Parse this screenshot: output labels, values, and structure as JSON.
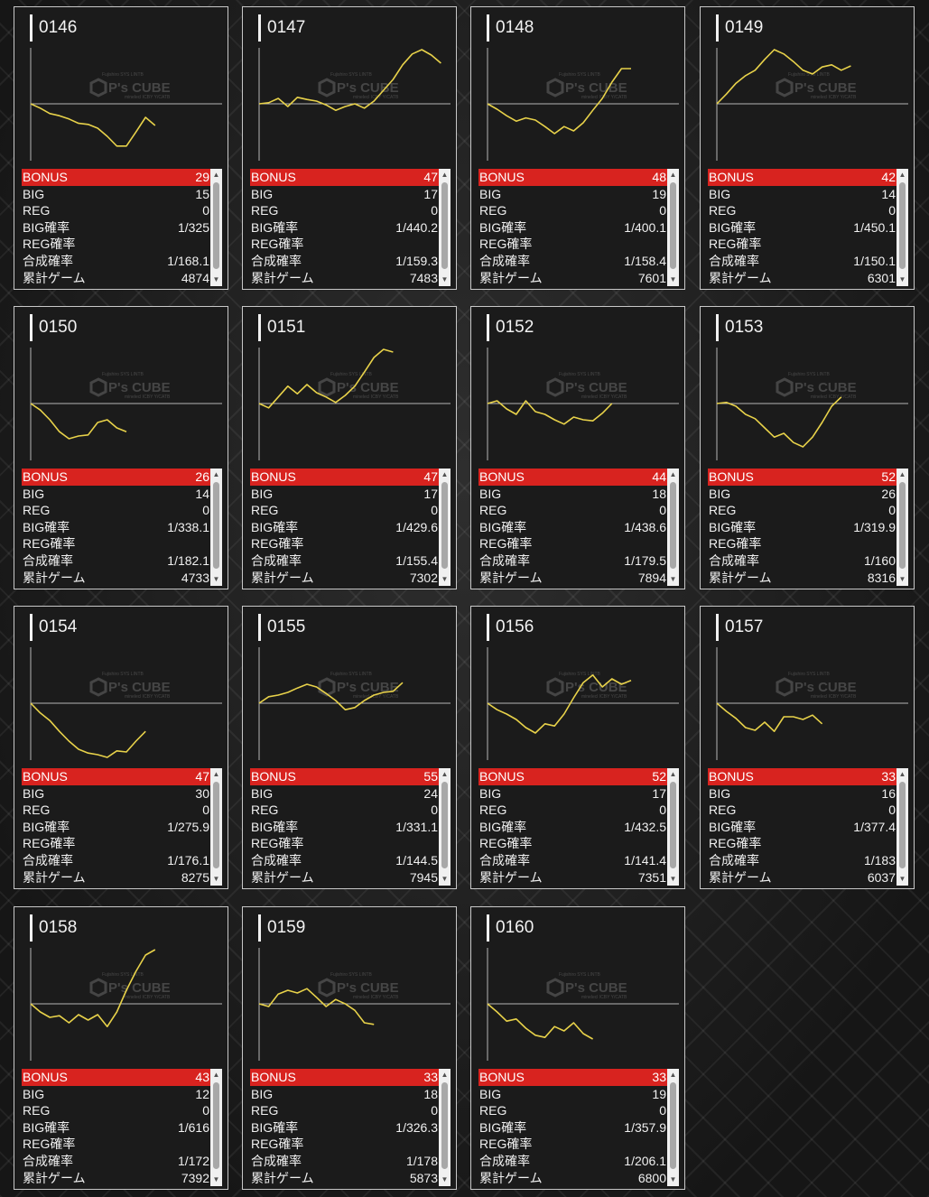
{
  "watermark": {
    "sub_text_top": "Fujishiro SYS LINTB",
    "brand": "P's CUBE",
    "sub_text_bottom": "minelecl ICBY Y/CATB"
  },
  "colors": {
    "line": "#e8d24a",
    "bonus_bg": "#d8231f",
    "axis": "#b4b4b4"
  },
  "labels": {
    "bonus": "BONUS",
    "big": "BIG",
    "reg": "REG",
    "big_prob": "BIG確率",
    "reg_prob": "REG確率",
    "combined_prob": "合成確率",
    "total_games": "累計ゲーム"
  },
  "machines": [
    {
      "id": "0146",
      "bonus": "29",
      "big": "15",
      "reg": "0",
      "big_prob": "1/325",
      "reg_prob": "",
      "combined_prob": "1/168.1",
      "total_games": "4874",
      "trend": [
        0,
        -0.08,
        -0.18,
        -0.22,
        -0.28,
        -0.36,
        -0.38,
        -0.45,
        -0.6,
        -0.78,
        -0.78,
        -0.52,
        -0.25,
        -0.4
      ]
    },
    {
      "id": "0147",
      "bonus": "47",
      "big": "17",
      "reg": "0",
      "big_prob": "1/440.2",
      "reg_prob": "",
      "combined_prob": "1/159.3",
      "total_games": "7483",
      "trend": [
        0,
        0.02,
        0.1,
        -0.05,
        0.12,
        0.08,
        0.05,
        -0.02,
        -0.12,
        -0.05,
        0.0,
        -0.08,
        0.05,
        0.25,
        0.45,
        0.72,
        0.92,
        1.0,
        0.9,
        0.75
      ]
    },
    {
      "id": "0148",
      "bonus": "48",
      "big": "19",
      "reg": "0",
      "big_prob": "1/400.1",
      "reg_prob": "",
      "combined_prob": "1/158.4",
      "total_games": "7601",
      "trend": [
        0,
        -0.1,
        -0.22,
        -0.32,
        -0.26,
        -0.3,
        -0.42,
        -0.55,
        -0.42,
        -0.5,
        -0.35,
        -0.12,
        0.1,
        0.4,
        0.65,
        0.65
      ]
    },
    {
      "id": "0149",
      "bonus": "42",
      "big": "14",
      "reg": "0",
      "big_prob": "1/450.1",
      "reg_prob": "",
      "combined_prob": "1/150.1",
      "total_games": "6301",
      "trend": [
        0,
        0.18,
        0.38,
        0.52,
        0.62,
        0.82,
        1.0,
        0.92,
        0.78,
        0.62,
        0.55,
        0.68,
        0.72,
        0.62,
        0.7
      ]
    },
    {
      "id": "0150",
      "bonus": "26",
      "big": "14",
      "reg": "0",
      "big_prob": "1/338.1",
      "reg_prob": "",
      "combined_prob": "1/182.1",
      "total_games": "4733",
      "trend": [
        0,
        -0.12,
        -0.3,
        -0.52,
        -0.65,
        -0.6,
        -0.58,
        -0.35,
        -0.3,
        -0.45,
        -0.52
      ]
    },
    {
      "id": "0151",
      "bonus": "47",
      "big": "17",
      "reg": "0",
      "big_prob": "1/429.6",
      "reg_prob": "",
      "combined_prob": "1/155.4",
      "total_games": "7302",
      "trend": [
        0,
        -0.08,
        0.12,
        0.32,
        0.18,
        0.35,
        0.2,
        0.12,
        0.02,
        0.15,
        0.32,
        0.58,
        0.85,
        1.0,
        0.95
      ]
    },
    {
      "id": "0152",
      "bonus": "44",
      "big": "18",
      "reg": "0",
      "big_prob": "1/438.6",
      "reg_prob": "",
      "combined_prob": "1/179.5",
      "total_games": "7894",
      "trend": [
        0,
        0.05,
        -0.1,
        -0.2,
        0.05,
        -0.15,
        -0.2,
        -0.3,
        -0.38,
        -0.25,
        -0.3,
        -0.32,
        -0.18,
        0.0
      ]
    },
    {
      "id": "0153",
      "bonus": "52",
      "big": "26",
      "reg": "0",
      "big_prob": "1/319.9",
      "reg_prob": "",
      "combined_prob": "1/160",
      "total_games": "8316",
      "trend": [
        0,
        0.02,
        -0.05,
        -0.2,
        -0.28,
        -0.45,
        -0.62,
        -0.55,
        -0.72,
        -0.8,
        -0.62,
        -0.35,
        -0.05,
        0.12
      ]
    },
    {
      "id": "0154",
      "bonus": "47",
      "big": "30",
      "reg": "0",
      "big_prob": "1/275.9",
      "reg_prob": "",
      "combined_prob": "1/176.1",
      "total_games": "8275",
      "trend": [
        0,
        -0.18,
        -0.32,
        -0.52,
        -0.7,
        -0.85,
        -0.92,
        -0.95,
        -1.0,
        -0.88,
        -0.9,
        -0.7,
        -0.52
      ]
    },
    {
      "id": "0155",
      "bonus": "55",
      "big": "24",
      "reg": "0",
      "big_prob": "1/331.1",
      "reg_prob": "",
      "combined_prob": "1/144.5",
      "total_games": "7945",
      "trend": [
        0,
        0.12,
        0.15,
        0.2,
        0.28,
        0.35,
        0.3,
        0.18,
        0.05,
        -0.12,
        -0.08,
        0.05,
        0.15,
        0.2,
        0.22,
        0.38
      ]
    },
    {
      "id": "0156",
      "bonus": "52",
      "big": "17",
      "reg": "0",
      "big_prob": "1/432.5",
      "reg_prob": "",
      "combined_prob": "1/141.4",
      "total_games": "7351",
      "trend": [
        0,
        -0.12,
        -0.2,
        -0.3,
        -0.45,
        -0.55,
        -0.38,
        -0.42,
        -0.2,
        0.1,
        0.38,
        0.52,
        0.3,
        0.45,
        0.35,
        0.42
      ]
    },
    {
      "id": "0157",
      "bonus": "33",
      "big": "16",
      "reg": "0",
      "big_prob": "1/377.4",
      "reg_prob": "",
      "combined_prob": "1/183",
      "total_games": "6037",
      "trend": [
        0,
        -0.15,
        -0.28,
        -0.45,
        -0.5,
        -0.35,
        -0.52,
        -0.25,
        -0.25,
        -0.3,
        -0.22,
        -0.38
      ]
    },
    {
      "id": "0158",
      "bonus": "43",
      "big": "12",
      "reg": "0",
      "big_prob": "1/616",
      "reg_prob": "",
      "combined_prob": "1/172",
      "total_games": "7392",
      "trend": [
        0,
        -0.15,
        -0.25,
        -0.22,
        -0.35,
        -0.2,
        -0.3,
        -0.2,
        -0.42,
        -0.15,
        0.25,
        0.6,
        0.9,
        1.0
      ]
    },
    {
      "id": "0159",
      "bonus": "33",
      "big": "18",
      "reg": "0",
      "big_prob": "1/326.3",
      "reg_prob": "",
      "combined_prob": "1/178",
      "total_games": "5873",
      "trend": [
        0,
        -0.05,
        0.18,
        0.25,
        0.2,
        0.28,
        0.12,
        -0.05,
        0.08,
        0.0,
        -0.12,
        -0.35,
        -0.38
      ]
    },
    {
      "id": "0160",
      "bonus": "33",
      "big": "19",
      "reg": "0",
      "big_prob": "1/357.9",
      "reg_prob": "",
      "combined_prob": "1/206.1",
      "total_games": "6800",
      "trend": [
        0,
        -0.15,
        -0.32,
        -0.28,
        -0.45,
        -0.58,
        -0.62,
        -0.42,
        -0.5,
        -0.35,
        -0.55,
        -0.65
      ]
    }
  ]
}
